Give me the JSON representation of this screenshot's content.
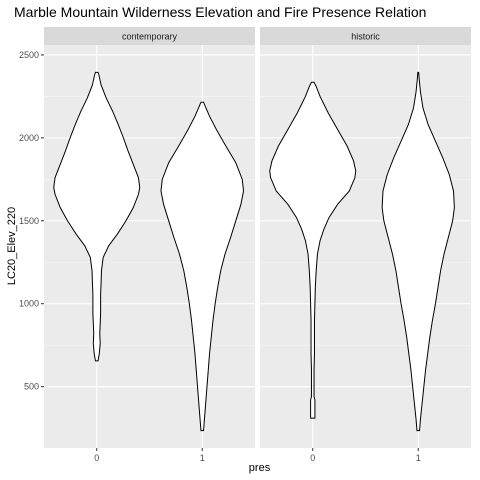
{
  "chart_data": {
    "type": "violin",
    "title": "Marble Mountain Wilderness Elevation and Fire Presence Relation",
    "xlabel": "pres",
    "ylabel": "LC20_Elev_220",
    "categories": [
      "0",
      "1"
    ],
    "ylim": [
      130,
      2560
    ],
    "yticks": [
      500,
      1000,
      1500,
      2000,
      2500
    ],
    "grid": true,
    "facets": [
      {
        "label": "contemporary",
        "violins": [
          {
            "category": "0",
            "ymin": 655,
            "ymax": 2395,
            "profile": [
              [
                655,
                0.03
              ],
              [
                700,
                0.06
              ],
              [
                760,
                0.08
              ],
              [
                820,
                0.07
              ],
              [
                880,
                0.08
              ],
              [
                940,
                0.09
              ],
              [
                1000,
                0.09
              ],
              [
                1060,
                0.09
              ],
              [
                1120,
                0.1
              ],
              [
                1200,
                0.11
              ],
              [
                1280,
                0.15
              ],
              [
                1350,
                0.28
              ],
              [
                1420,
                0.48
              ],
              [
                1500,
                0.68
              ],
              [
                1580,
                0.85
              ],
              [
                1660,
                0.97
              ],
              [
                1700,
                1.0
              ],
              [
                1760,
                0.97
              ],
              [
                1840,
                0.85
              ],
              [
                1920,
                0.73
              ],
              [
                2000,
                0.62
              ],
              [
                2080,
                0.5
              ],
              [
                2160,
                0.37
              ],
              [
                2240,
                0.22
              ],
              [
                2320,
                0.1
              ],
              [
                2380,
                0.05
              ],
              [
                2395,
                0.03
              ]
            ]
          },
          {
            "category": "1",
            "ymin": 235,
            "ymax": 2215,
            "profile": [
              [
                235,
                0.03
              ],
              [
                300,
                0.05
              ],
              [
                400,
                0.08
              ],
              [
                500,
                0.11
              ],
              [
                600,
                0.14
              ],
              [
                700,
                0.17
              ],
              [
                800,
                0.21
              ],
              [
                900,
                0.25
              ],
              [
                1000,
                0.3
              ],
              [
                1100,
                0.36
              ],
              [
                1200,
                0.43
              ],
              [
                1300,
                0.53
              ],
              [
                1400,
                0.66
              ],
              [
                1500,
                0.78
              ],
              [
                1600,
                0.9
              ],
              [
                1680,
                0.96
              ],
              [
                1750,
                0.93
              ],
              [
                1850,
                0.78
              ],
              [
                1950,
                0.55
              ],
              [
                2050,
                0.33
              ],
              [
                2130,
                0.17
              ],
              [
                2190,
                0.07
              ],
              [
                2215,
                0.03
              ]
            ]
          }
        ]
      },
      {
        "label": "historic",
        "violins": [
          {
            "category": "0",
            "ymin": 310,
            "ymax": 2335,
            "profile": [
              [
                310,
                0.05
              ],
              [
                380,
                0.05
              ],
              [
                420,
                0.05
              ],
              [
                440,
                0.03
              ],
              [
                500,
                0.03
              ],
              [
                600,
                0.03
              ],
              [
                700,
                0.04
              ],
              [
                800,
                0.04
              ],
              [
                900,
                0.04
              ],
              [
                1000,
                0.05
              ],
              [
                1100,
                0.06
              ],
              [
                1200,
                0.08
              ],
              [
                1300,
                0.11
              ],
              [
                1380,
                0.17
              ],
              [
                1450,
                0.26
              ],
              [
                1520,
                0.38
              ],
              [
                1600,
                0.58
              ],
              [
                1680,
                0.85
              ],
              [
                1760,
                0.98
              ],
              [
                1800,
                1.0
              ],
              [
                1860,
                0.95
              ],
              [
                1950,
                0.8
              ],
              [
                2050,
                0.58
              ],
              [
                2150,
                0.36
              ],
              [
                2250,
                0.17
              ],
              [
                2310,
                0.08
              ],
              [
                2335,
                0.03
              ]
            ]
          },
          {
            "category": "1",
            "ymin": 235,
            "ymax": 2395,
            "profile": [
              [
                235,
                0.03
              ],
              [
                300,
                0.05
              ],
              [
                400,
                0.09
              ],
              [
                500,
                0.13
              ],
              [
                600,
                0.17
              ],
              [
                700,
                0.22
              ],
              [
                800,
                0.27
              ],
              [
                900,
                0.33
              ],
              [
                1000,
                0.4
              ],
              [
                1100,
                0.46
              ],
              [
                1200,
                0.52
              ],
              [
                1300,
                0.6
              ],
              [
                1400,
                0.7
              ],
              [
                1500,
                0.8
              ],
              [
                1580,
                0.84
              ],
              [
                1680,
                0.82
              ],
              [
                1780,
                0.72
              ],
              [
                1880,
                0.57
              ],
              [
                1980,
                0.4
              ],
              [
                2080,
                0.23
              ],
              [
                2180,
                0.11
              ],
              [
                2280,
                0.05
              ],
              [
                2360,
                0.02
              ],
              [
                2395,
                0.01
              ]
            ]
          }
        ]
      }
    ]
  }
}
